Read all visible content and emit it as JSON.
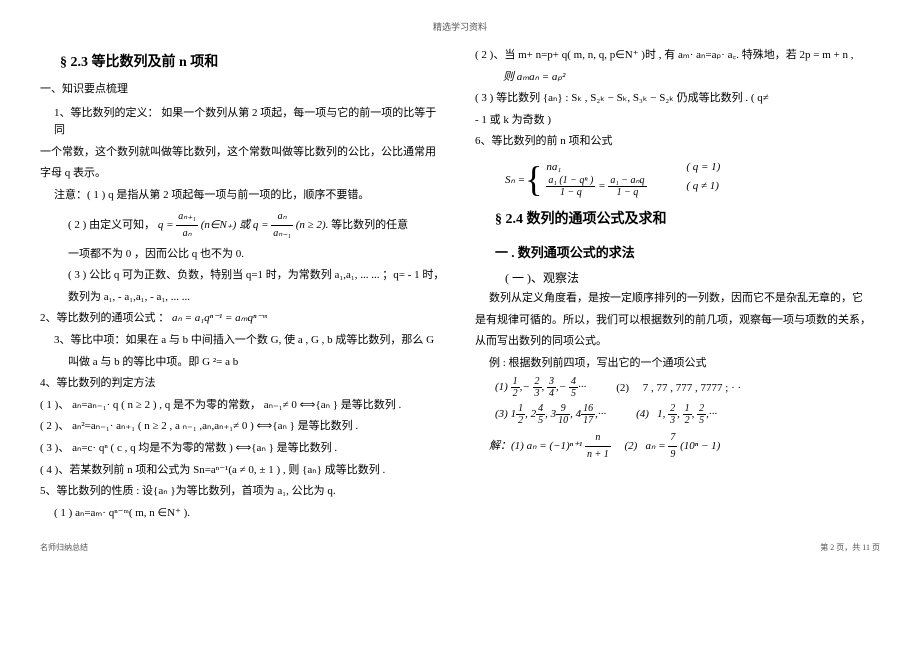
{
  "header": "精选学习资料",
  "left": {
    "title": "§ 2.3  等比数列及前  n 项和",
    "h1": "一、知识要点梳理",
    "p1a": "1、等比数列的定义：  如果一个数列从第   2 项起，每一项与它的前一项的比等于同",
    "p1b": "一个常数，这个数列就叫做等比数列，这个常数叫做等比数列的公比，公比通常用",
    "p1c": "字母  q 表示。",
    "note1": "注意：( 1 ) q 是指从第   2 项起每一项与前一项的比，顺序不要错。",
    "note2a": "( 2 ) 由定义可知，",
    "note2b": "等比数列的任意",
    "note3": "一项都不为   0 ，因而公比   q 也不为   0.",
    "note4a": "( 3 ) 公比 q 可为正数、负数，特别当     q=1 时，为常数列   a₁,a₁, ... ... ；q= - 1 时，",
    "note4b": "数列为  a₁, - a₁,a₁, - a₁, ... ...",
    "p2": "2、等比数列的通项公式     ：",
    "p3a": "3、等比中项：如果在 a 与 b 中间插入一个数    G, 使   a , G , b 成等比数列，那么    G",
    "p3b": "叫做  a 与 b 的等比中项。即    G ²= a b",
    "p4": "4、等比数列的判定方法",
    "m1": "( 1 )、 aₙ=aₙ₋₁·  q ( n ≥ 2 )   ,   q 是不为零的常数，   aₙ₋₁≠ 0 ⟺{aₙ } 是等比数列   .",
    "m2": "( 2 )、 aₙ²=aₙ₋₁·  aₙ₊₁ ( n ≥ 2 ,  a ₙ₋₁ ,aₙ,aₙ₊₁≠ 0 )   ⟺{aₙ } 是等比数列  .",
    "m3": "( 3 )、 aₙ=c·  qⁿ ( c , q 均是不为零的常数 )    ⟺{aₙ } 是等比数列  .",
    "m4": "( 4 )、若某数列前   n 项和公式为   Sn=aⁿ⁻¹(a ≠ 0, ± 1 ) , 则 {aₙ} 成等比数列   .",
    "p5": "5、等比数列的性质    : 设{aₙ }为等比数列，首项为    a₁, 公比为  q.",
    "prop1": "( 1 )  aₙ=aₘ·  qⁿ⁻ᵐ(  m,  n ∈N⁺  ).",
    "formula_q1_num": "aₙ₊₁",
    "formula_q1_den": "aₙ",
    "formula_q1_cond": "(n∈N₊) 或 q =",
    "formula_q2_num": "aₙ",
    "formula_q2_den": "aₙ₋₁",
    "formula_q2_cond": "(n ≥ 2).",
    "formula_an": "aₙ  = a₁qⁿ⁻¹  =  aₘqⁿ⁻ᵐ"
  },
  "right": {
    "prop2": "( 2 )、当 m+ n=p+ q(  m, n, q,  p∈N⁺  )时 , 有 aₘ·  aₙ=aₚ·  a꜀. 特殊地，若 2p =  m + n ,",
    "prop2f": "则 aₘaₙ  =  aₚ²",
    "prop3": "( 3 )  等比数列  {aₙ}   :  Sₖ , S₂ₖ − Sₖ,  S₃ₖ − S₂ₖ  仍成等比数列 .           (  q≠",
    "prop3b": "- 1 或  k 为奇数 )",
    "p6": "6、等比数列的前    n 项和公式",
    "sn_label": "Sₙ =",
    "sn_row1_expr": "na₁",
    "sn_row1_cond": "( q = 1)",
    "sn_row2_num1": "a₁ (1 − qⁿ )",
    "sn_row2_den1": "1 − q",
    "sn_row2_num2": "a₁ − aₙq",
    "sn_row2_den2": "1 − q",
    "sn_row2_cond": "( q ≠ 1)",
    "title2": "§ 2.4   数列的通项公式及求和",
    "h2": "一 . 数列通项公式的求法",
    "h2sub": "( 一 )、观察法",
    "obs1": "数列从定义角度看，是按一定顺序排列的一列数，因而它不是杂乱无章的，它",
    "obs2": "是有规律可循的。所以，我们可以根据数列的前几项，观察每一项与项数的关系，",
    "obs3": "从而写出数列的同项公式。",
    "ex_intro": "例 : 根据数列前四项，写出它的一个通项公式",
    "seq1_label": "(1)",
    "seq1_f1n": "1",
    "seq1_f1d": "2",
    "seq1_f2n": "2",
    "seq1_f2d": "3",
    "seq1_f3n": "3",
    "seq1_f3d": "4",
    "seq1_f4n": "4",
    "seq1_f4d": "5",
    "seq2_label": "(2)",
    "seq2": "7 , 77 , 777 , 7777 ; · ·",
    "seq3_label": "(3)",
    "seq3_a": "1",
    "seq3_an": "1",
    "seq3_ad": "2",
    "seq3_b": "2",
    "seq3_bn": "4",
    "seq3_bd": "5",
    "seq3_c": "3",
    "seq3_cn": "9",
    "seq3_cd": "10",
    "seq3_d": "4",
    "seq3_dn": "16",
    "seq3_dd": "17",
    "seq4_label": "(4)",
    "seq4": "1 ,2/3, 1/2, 2/5, · · ·",
    "seq4_a": "1",
    "seq4_bn": "2",
    "seq4_bd": "3",
    "seq4_cn": "1",
    "seq4_cd": "2",
    "seq4_dn": "2",
    "seq4_dd": "5",
    "sol_label": "解：(1)",
    "sol1_lhs": "aₙ = (−1)ⁿ⁺¹",
    "sol1_num": "n",
    "sol1_den": "n + 1",
    "sol2_label": "(2)",
    "sol2_lhs": "aₙ =",
    "sol2_fnum": "7",
    "sol2_fden": "9",
    "sol2_rest": "(10ⁿ − 1)"
  },
  "footer_left": "名师归纳总结",
  "footer_right": "第 2 页，共 11 页"
}
